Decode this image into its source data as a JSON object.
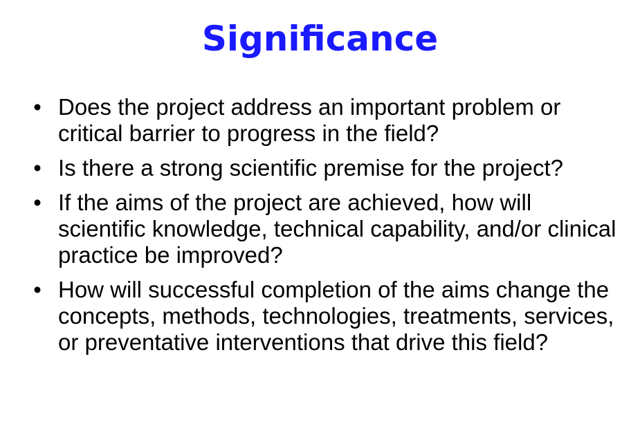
{
  "slide": {
    "title": "Significance",
    "bullet_symbol": "•",
    "bullets": [
      " Does the project address an important problem or critical barrier to progress in the field?",
      " Is there a strong scientific premise for the project?",
      " If the aims of the project are achieved, how will scientific knowledge, technical capability, and/or clinical practice be improved?",
      " How will successful completion of the aims change the concepts, methods, technologies, treatments, services, or preventative interventions that drive this field?"
    ],
    "colors": {
      "title": "#1a1aff",
      "text": "#000000",
      "background": "#ffffff"
    }
  }
}
